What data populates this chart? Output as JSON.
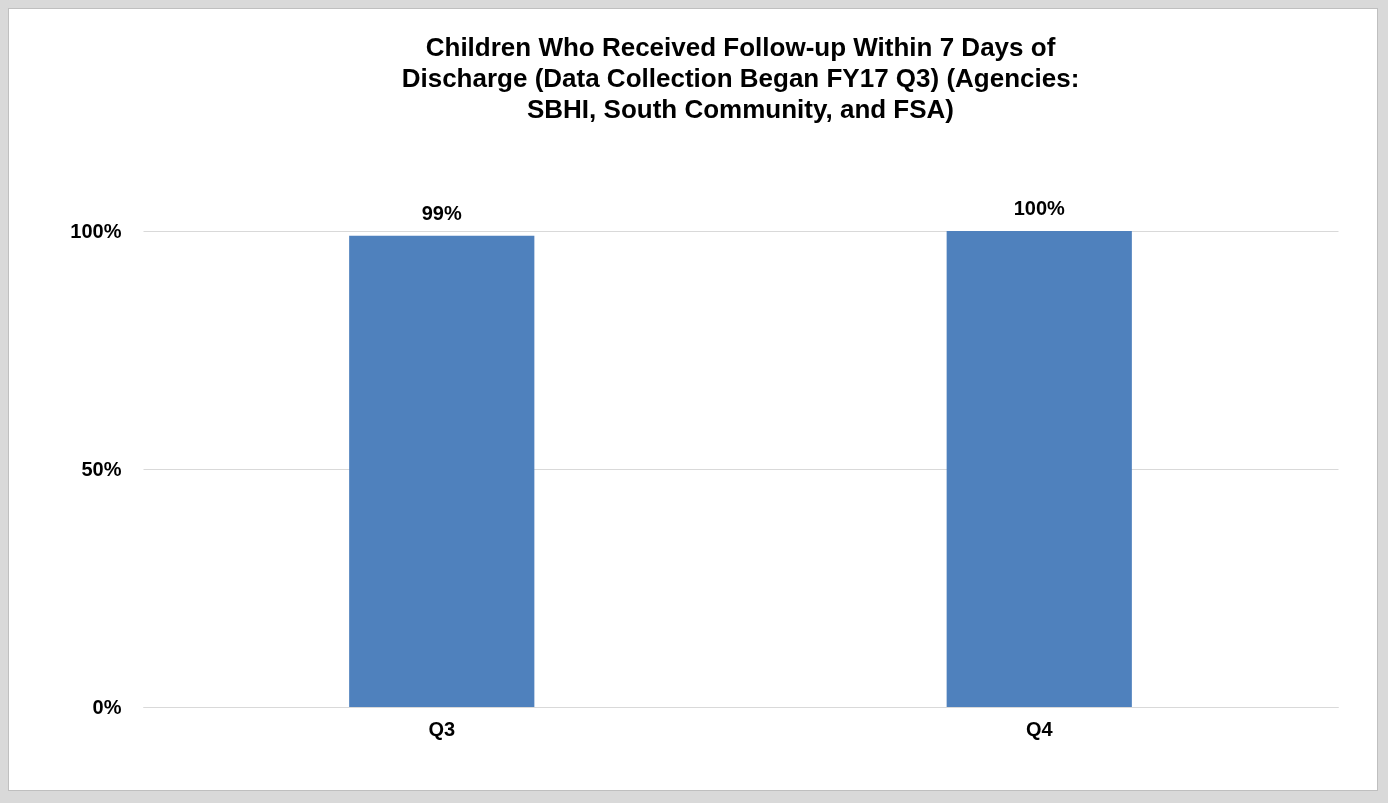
{
  "chart_data": {
    "type": "bar",
    "title": "Children Who Received Follow-up Within 7 Days of Discharge (Data Collection Began FY17 Q3) (Agencies: SBHI, South Community, and FSA)",
    "categories": [
      "Q3",
      "Q4"
    ],
    "values": [
      99,
      100
    ],
    "value_labels": [
      "99%",
      "100%"
    ],
    "color": "#4f81bd",
    "ylim": [
      0,
      100
    ],
    "yticks": [
      {
        "value": 0,
        "label": "0%"
      },
      {
        "value": 50,
        "label": "50%"
      },
      {
        "value": 100,
        "label": "100%"
      }
    ],
    "grid": "y"
  }
}
